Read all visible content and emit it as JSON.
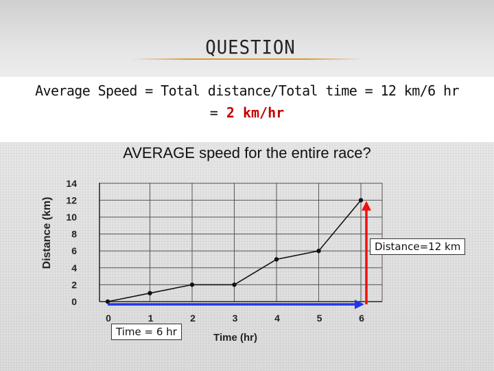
{
  "slide": {
    "title": "QUESTION",
    "answer_line1": "Average Speed = Total distance/Total time = 12 km/6 hr",
    "answer_line2_prefix": "= ",
    "answer_value": "2 km/hr",
    "prompt": "AVERAGE speed for the entire race?",
    "colors": {
      "answer_value": "#c40000",
      "title_rule": "#d9963c",
      "distance_arrow": "#ee1111",
      "time_arrow": "#2233ee"
    }
  },
  "chart_data": {
    "type": "line",
    "title": "",
    "xlabel": "Time (hr)",
    "ylabel": "Distance (km)",
    "x": [
      0,
      1,
      2,
      3,
      4,
      5,
      6
    ],
    "y": [
      0,
      1,
      2,
      2,
      5,
      6,
      12
    ],
    "xlim": [
      0,
      6.5
    ],
    "ylim": [
      0,
      14
    ],
    "x_ticks": [
      "0",
      "1",
      "2",
      "3",
      "4",
      "5",
      "6"
    ],
    "y_ticks": [
      "0",
      "2",
      "4",
      "6",
      "8",
      "10",
      "12",
      "14"
    ],
    "grid": true,
    "annotations": [
      {
        "type": "vertical-arrow",
        "color": "red",
        "x": 6,
        "from_y": 0,
        "to_y": 12,
        "label": "Distance=12 km"
      },
      {
        "type": "horizontal-arrow",
        "color": "blue",
        "y": 0,
        "from_x": 0,
        "to_x": 6,
        "label": "Time = 6 hr"
      }
    ]
  }
}
